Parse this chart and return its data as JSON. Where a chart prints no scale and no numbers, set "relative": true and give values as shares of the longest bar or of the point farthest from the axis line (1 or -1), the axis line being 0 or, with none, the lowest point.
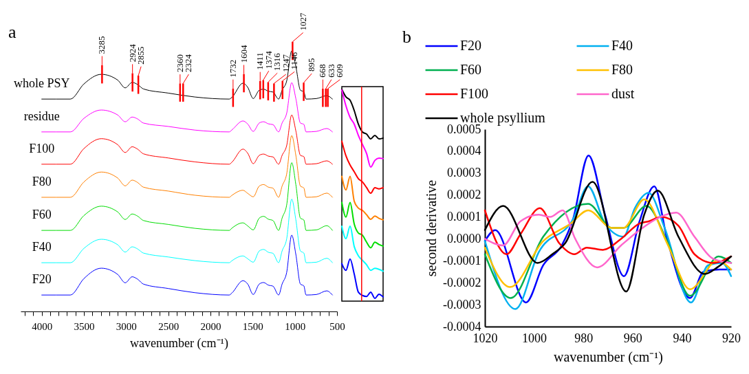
{
  "chart_data": [
    {
      "type": "line",
      "title": "a",
      "xlabel": "wavenumber (cm⁻¹)",
      "relative": true,
      "legend": false,
      "x": [
        4000,
        3660,
        3500,
        3294,
        3100,
        3010,
        2928,
        2860,
        2795,
        2500,
        2185,
        1777,
        1748,
        1615,
        1558,
        1493,
        1422,
        1370,
        1314,
        1259,
        1192,
        1151,
        1097,
        1037,
        988,
        934,
        893,
        867,
        744,
        622,
        554
      ],
      "xlim": [
        4250,
        500
      ],
      "xticks": [
        {
          "value": 4200,
          "label": null
        },
        {
          "value": 4100,
          "label": null
        },
        4000,
        {
          "value": 3900,
          "label": null
        },
        {
          "value": 3800,
          "label": null
        },
        {
          "value": 3700,
          "label": null
        },
        {
          "value": 3600,
          "label": null
        },
        3500,
        {
          "value": 3400,
          "label": null
        },
        {
          "value": 3300,
          "label": null
        },
        {
          "value": 3200,
          "label": null
        },
        {
          "value": 3100,
          "label": null
        },
        3000,
        {
          "value": 2900,
          "label": null
        },
        {
          "value": 2800,
          "label": null
        },
        {
          "value": 2700,
          "label": null
        },
        {
          "value": 2600,
          "label": null
        },
        2500,
        {
          "value": 2400,
          "label": null
        },
        {
          "value": 2300,
          "label": null
        },
        {
          "value": 2200,
          "label": null
        },
        {
          "value": 2100,
          "label": null
        },
        2000,
        {
          "value": 1900,
          "label": null
        },
        {
          "value": 1800,
          "label": null
        },
        {
          "value": 1700,
          "label": null
        },
        {
          "value": 1600,
          "label": null
        },
        1500,
        {
          "value": 1400,
          "label": null
        },
        {
          "value": 1300,
          "label": null
        },
        {
          "value": 1200,
          "label": null
        },
        {
          "value": 1100,
          "label": null
        },
        1000,
        {
          "value": 900,
          "label": null
        },
        {
          "value": 800,
          "label": null
        },
        {
          "value": 700,
          "label": null
        },
        {
          "value": 600,
          "label": null
        },
        500
      ],
      "series": [
        {
          "name": "whole PSY",
          "color": "#000000",
          "values": [
            0.815,
            0.815,
            0.873,
            0.91,
            0.888,
            0.858,
            0.879,
            0.87,
            0.854,
            0.838,
            0.823,
            0.815,
            0.821,
            0.876,
            0.86,
            0.817,
            0.849,
            0.853,
            0.845,
            0.842,
            0.815,
            0.849,
            0.884,
            1.0,
            0.94,
            0.849,
            0.843,
            0.815,
            0.817,
            0.828,
            0.815
          ]
        },
        {
          "name": "residue",
          "color": "#ff00ff",
          "values": [
            0.689,
            0.689,
            0.741,
            0.773,
            0.754,
            0.728,
            0.746,
            0.738,
            0.723,
            0.71,
            0.696,
            0.689,
            0.696,
            0.731,
            0.719,
            0.691,
            0.723,
            0.728,
            0.72,
            0.717,
            0.689,
            0.723,
            0.76,
            0.878,
            0.817,
            0.723,
            0.718,
            0.689,
            0.691,
            0.702,
            0.689
          ]
        },
        {
          "name": "F100",
          "color": "#ff0000",
          "values": [
            0.565,
            0.565,
            0.625,
            0.663,
            0.64,
            0.61,
            0.632,
            0.622,
            0.605,
            0.589,
            0.574,
            0.565,
            0.572,
            0.623,
            0.607,
            0.567,
            0.599,
            0.604,
            0.596,
            0.593,
            0.565,
            0.599,
            0.636,
            0.754,
            0.693,
            0.599,
            0.594,
            0.565,
            0.567,
            0.578,
            0.565
          ]
        },
        {
          "name": "F80",
          "color": "#ff8000",
          "values": [
            0.438,
            0.438,
            0.497,
            0.535,
            0.512,
            0.482,
            0.504,
            0.494,
            0.477,
            0.462,
            0.446,
            0.438,
            0.445,
            0.465,
            0.453,
            0.44,
            0.481,
            0.487,
            0.477,
            0.473,
            0.438,
            0.481,
            0.527,
            0.675,
            0.599,
            0.481,
            0.474,
            0.438,
            0.44,
            0.454,
            0.438
          ]
        },
        {
          "name": "F60",
          "color": "#00dd00",
          "values": [
            0.311,
            0.311,
            0.368,
            0.404,
            0.382,
            0.353,
            0.374,
            0.365,
            0.349,
            0.334,
            0.319,
            0.311,
            0.319,
            0.34,
            0.328,
            0.313,
            0.358,
            0.365,
            0.354,
            0.349,
            0.311,
            0.358,
            0.408,
            0.571,
            0.487,
            0.358,
            0.351,
            0.311,
            0.313,
            0.329,
            0.311
          ]
        },
        {
          "name": "F40",
          "color": "#00ffff",
          "values": [
            0.187,
            0.187,
            0.242,
            0.277,
            0.256,
            0.228,
            0.248,
            0.239,
            0.224,
            0.209,
            0.195,
            0.187,
            0.194,
            0.213,
            0.202,
            0.189,
            0.232,
            0.238,
            0.227,
            0.223,
            0.187,
            0.232,
            0.278,
            0.431,
            0.352,
            0.232,
            0.224,
            0.187,
            0.189,
            0.204,
            0.187
          ]
        },
        {
          "name": "F20",
          "color": "#0000ff",
          "values": [
            0.063,
            0.063,
            0.126,
            0.166,
            0.142,
            0.11,
            0.133,
            0.123,
            0.105,
            0.088,
            0.072,
            0.063,
            0.07,
            0.118,
            0.105,
            0.065,
            0.105,
            0.111,
            0.101,
            0.097,
            0.063,
            0.105,
            0.149,
            0.293,
            0.219,
            0.105,
            0.098,
            0.063,
            0.065,
            0.079,
            0.063
          ]
        }
      ],
      "annotations": [
        {
          "text": "3285",
          "x": 3285,
          "y": 0.91
        },
        {
          "text": "2924",
          "x": 2924,
          "y": 0.879
        },
        {
          "text": "2855",
          "x": 2855,
          "y": 0.87
        },
        {
          "text": "2360",
          "x": 2360,
          "y": 0.84
        },
        {
          "text": "2324",
          "x": 2324,
          "y": 0.84
        },
        {
          "text": "1732",
          "x": 1732,
          "y": 0.82
        },
        {
          "text": "1604",
          "x": 1604,
          "y": 0.876
        },
        {
          "text": "1411",
          "x": 1411,
          "y": 0.849
        },
        {
          "text": "1374",
          "x": 1374,
          "y": 0.853
        },
        {
          "text": "1316",
          "x": 1316,
          "y": 0.845
        },
        {
          "text": "1247",
          "x": 1247,
          "y": 0.84
        },
        {
          "text": "1146",
          "x": 1146,
          "y": 0.85
        },
        {
          "text": "1027",
          "x": 1027,
          "y": 1.0
        },
        {
          "text": "895",
          "x": 895,
          "y": 0.843
        },
        {
          "text": "668",
          "x": 668,
          "y": 0.82
        },
        {
          "text": "633",
          "x": 633,
          "y": 0.82
        },
        {
          "text": "609",
          "x": 609,
          "y": 0.82
        }
      ]
    },
    {
      "type": "line",
      "relative": true,
      "legend": false,
      "categories": [
        null,
        null,
        null,
        null,
        null,
        null,
        null,
        null,
        null,
        null,
        null
      ],
      "series": [
        {
          "color": "#000000",
          "values": [
            1.0,
            0.964,
            0.948,
            0.899,
            0.834,
            0.796,
            0.786,
            0.763,
            0.78,
            0.763,
            0.767
          ]
        },
        {
          "color": "#ff00ff",
          "values": [
            0.997,
            0.921,
            0.866,
            0.834,
            0.78,
            0.736,
            0.693,
            0.628,
            0.66,
            0.671,
            0.669
          ]
        },
        {
          "color": "#ff0000",
          "values": [
            0.752,
            0.682,
            0.638,
            0.606,
            0.573,
            0.557,
            0.53,
            0.503,
            0.53,
            0.524,
            0.53
          ]
        },
        {
          "color": "#ff8000",
          "values": [
            0.584,
            0.519,
            0.584,
            0.465,
            0.432,
            0.421,
            0.4,
            0.378,
            0.394,
            0.383,
            0.376
          ]
        },
        {
          "color": "#00dd00",
          "values": [
            0.459,
            0.389,
            0.459,
            0.356,
            0.313,
            0.302,
            0.269,
            0.242,
            0.269,
            0.258,
            0.25
          ]
        },
        {
          "color": "#00ffff",
          "values": [
            0.345,
            0.286,
            0.345,
            0.248,
            0.204,
            0.182,
            0.161,
            0.134,
            0.144,
            0.139,
            0.13
          ]
        },
        {
          "color": "#0000ff",
          "values": [
            0.166,
            0.134,
            0.188,
            0.117,
            0.03,
            0.014,
            0.009,
            0.03,
            0.0,
            0.02,
            0.007
          ]
        }
      ]
    },
    {
      "type": "line",
      "title": "b",
      "xlabel": "wavenumber (cm⁻¹)",
      "ylabel": "second derivative",
      "legend": "top",
      "xlim": [
        1020,
        920
      ],
      "xticks": [
        1020,
        1000,
        980,
        960,
        940,
        920
      ],
      "ylim": [
        -0.0004,
        0.0005
      ],
      "yticks": [
        -0.0004,
        -0.0003,
        -0.0002,
        -0.0001,
        {
          "value": 0,
          "label": "0.0000"
        },
        0.0001,
        0.0002,
        0.0003,
        0.0004,
        0.0005
      ],
      "series": [
        {
          "name": "F20",
          "color": "#0000ff",
          "x": [
            1020,
            1015.8,
            1003.3,
            996.3,
            988.8,
            984.2,
            977.9,
            971.2,
            963.5,
            957.2,
            951.2,
            946,
            936.7,
            931.2,
            924.7,
            920
          ],
          "values": [
            -1e-05,
            4e-05,
            -0.00029,
            -0.00012,
            -3e-05,
            9e-05,
            0.00038,
            0.00011,
            -0.00017,
            8e-05,
            0.00024,
            0,
            -0.00027,
            -0.00015,
            -0.00014,
            -0.00014
          ]
        },
        {
          "name": "F40",
          "color": "#00b0f0",
          "x": [
            1020,
            1007.6,
            998.1,
            984.2,
            978.1,
            971.2,
            963.7,
            959.1,
            953.5,
            947,
            936.3,
            929.3,
            923.7,
            920
          ],
          "values": [
            -1e-05,
            -0.00032,
            -6e-05,
            9e-05,
            0.00024,
            7e-05,
            1e-05,
            0.00014,
            0.00021,
            5e-05,
            -0.00029,
            -0.00012,
            -0.00011,
            -0.00017
          ]
        },
        {
          "name": "F60",
          "color": "#00b050",
          "x": [
            1020,
            1009.5,
            996.3,
            978.1,
            968.4,
            963.7,
            954.4,
            946,
            936.7,
            925.1,
            920
          ],
          "values": [
            -7e-05,
            -0.00027,
            1e-05,
            0.00016,
            5e-05,
            5e-05,
            0.00015,
            -1e-05,
            -0.00026,
            -8e-05,
            -0.00011
          ]
        },
        {
          "name": "F80",
          "color": "#ffc000",
          "x": [
            1020,
            1009.8,
            996.3,
            985.1,
            978.1,
            968.4,
            963.7,
            955.3,
            946,
            936.7,
            925.6,
            920
          ],
          "values": [
            -4e-05,
            -0.00022,
            -1e-05,
            7e-05,
            0.00013,
            5e-05,
            5e-05,
            0.00018,
            -2e-05,
            -0.00023,
            -0.0001,
            -0.00014
          ]
        },
        {
          "name": "F100",
          "color": "#ff0000",
          "x": [
            1020,
            1011.2,
            1005.6,
            997.7,
            989.8,
            983.7,
            978.6,
            972.1,
            964.7,
            957.2,
            953.5,
            948.4,
            941.4,
            934.9,
            927.4,
            920
          ],
          "values": [
            0.00013,
            -7e-05,
            2e-05,
            0.00014,
            -2e-05,
            -7e-05,
            -4e-05,
            -5e-05,
            0,
            7e-05,
            8e-05,
            0.0001,
            6e-05,
            -7e-05,
            -0.00011,
            -8e-05
          ]
        },
        {
          "name": "dust",
          "color": "#ff66cc",
          "x": [
            1020,
            1012.6,
            1005.6,
            998.1,
            993.5,
            988.4,
            983.3,
            974.4,
            964.7,
            957.2,
            948.8,
            942.3,
            934.9,
            927.4,
            920
          ],
          "values": [
            0,
            -3e-05,
            8e-05,
            0.00011,
            0.0001,
            0.00013,
            0,
            -0.00013,
            -3e-05,
            4e-05,
            0.0001,
            0.00012,
            1e-05,
            -9e-05,
            -0.00011
          ]
        },
        {
          "name": "whole psyllium",
          "color": "#000000",
          "x": [
            1020,
            1012.6,
            998.6,
            992.6,
            987.4,
            976.3,
            962.6,
            955.3,
            949.8,
            941.4,
            930.7,
            925.6,
            920
          ],
          "values": [
            4e-05,
            0.00015,
            -0.00011,
            -7e-05,
            -2e-05,
            0.00026,
            -0.00024,
            0.00011,
            0.00022,
            1e-05,
            -0.00016,
            -0.00013,
            -8e-05
          ]
        }
      ]
    }
  ]
}
